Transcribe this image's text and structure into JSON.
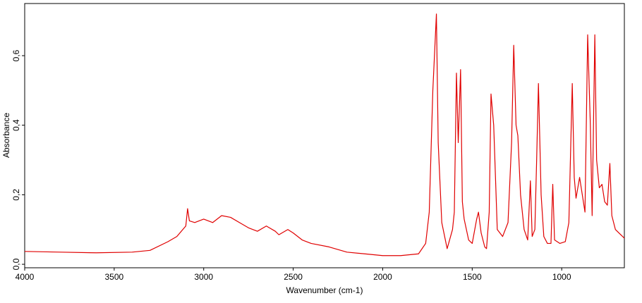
{
  "chart_data": {
    "type": "line",
    "xlabel": "Wavenumber (cm-1)",
    "ylabel": "Absorbance",
    "x": [
      4000,
      3800,
      3600,
      3400,
      3300,
      3200,
      3150,
      3100,
      3090,
      3080,
      3050,
      3000,
      2950,
      2900,
      2850,
      2800,
      2750,
      2700,
      2650,
      2600,
      2580,
      2530,
      2500,
      2450,
      2400,
      2300,
      2200,
      2100,
      2000,
      1900,
      1800,
      1760,
      1740,
      1720,
      1700,
      1690,
      1670,
      1640,
      1610,
      1600,
      1588,
      1578,
      1565,
      1555,
      1545,
      1520,
      1500,
      1475,
      1465,
      1450,
      1430,
      1420,
      1405,
      1395,
      1380,
      1360,
      1330,
      1300,
      1280,
      1268,
      1255,
      1245,
      1230,
      1210,
      1190,
      1175,
      1165,
      1150,
      1140,
      1130,
      1115,
      1100,
      1080,
      1060,
      1050,
      1040,
      1010,
      980,
      960,
      941,
      930,
      920,
      900,
      885,
      870,
      855,
      840,
      830,
      815,
      805,
      790,
      775,
      760,
      745,
      731,
      720,
      700,
      680,
      660,
      650
    ],
    "values": [
      0.037,
      0.035,
      0.033,
      0.035,
      0.04,
      0.065,
      0.08,
      0.11,
      0.16,
      0.125,
      0.12,
      0.13,
      0.12,
      0.14,
      0.135,
      0.12,
      0.105,
      0.095,
      0.11,
      0.095,
      0.085,
      0.1,
      0.09,
      0.07,
      0.06,
      0.05,
      0.035,
      0.03,
      0.025,
      0.025,
      0.03,
      0.06,
      0.15,
      0.5,
      0.72,
      0.35,
      0.12,
      0.045,
      0.1,
      0.15,
      0.55,
      0.35,
      0.56,
      0.18,
      0.13,
      0.07,
      0.06,
      0.13,
      0.15,
      0.09,
      0.05,
      0.045,
      0.15,
      0.49,
      0.4,
      0.1,
      0.08,
      0.12,
      0.35,
      0.63,
      0.4,
      0.37,
      0.2,
      0.1,
      0.07,
      0.24,
      0.08,
      0.1,
      0.3,
      0.52,
      0.2,
      0.08,
      0.06,
      0.06,
      0.23,
      0.07,
      0.06,
      0.065,
      0.12,
      0.52,
      0.25,
      0.19,
      0.25,
      0.2,
      0.15,
      0.66,
      0.4,
      0.14,
      0.66,
      0.3,
      0.22,
      0.23,
      0.18,
      0.17,
      0.29,
      0.14,
      0.1,
      0.09,
      0.08,
      0.075
    ],
    "color": "#e00000",
    "xlim": [
      4000,
      650
    ],
    "xticks": [
      4000,
      3500,
      3000,
      2500,
      2000,
      1500,
      1000
    ],
    "ylim": [
      -0.01,
      0.75
    ],
    "yticks": [
      {
        "value": 0,
        "label": "0,0"
      },
      {
        "value": 0.2,
        "label": "0,2"
      },
      {
        "value": 0.4,
        "label": "0,4"
      },
      {
        "value": 0.6,
        "label": "0,6"
      }
    ]
  }
}
